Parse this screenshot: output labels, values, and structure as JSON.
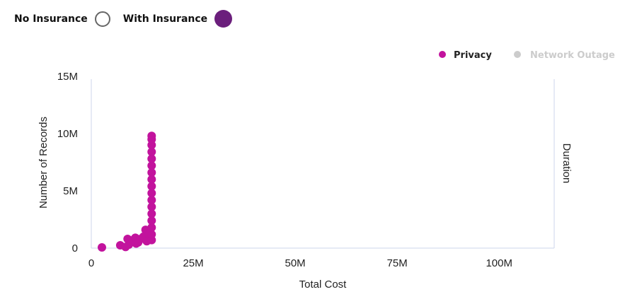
{
  "insurance_toggle": {
    "no_insurance_label": "No Insurance",
    "with_insurance_label": "With Insurance",
    "with_insurance_color": "#6b1f7c",
    "selected": "With Insurance"
  },
  "chart_data": {
    "type": "scatter",
    "xlabel": "Total Cost",
    "ylabel": "Number of Records",
    "y2label": "Duration",
    "xlim": [
      0,
      113.5
    ],
    "ylim": [
      0,
      15
    ],
    "x_unit": "M",
    "y_unit": "M",
    "x_ticks": [
      "0",
      "25M",
      "50M",
      "75M",
      "100M"
    ],
    "x_tick_values": [
      0,
      25,
      50,
      75,
      100
    ],
    "y_ticks": [
      "0",
      "5M",
      "10M",
      "15M"
    ],
    "y_tick_values": [
      0,
      5,
      10,
      15
    ],
    "grid": false,
    "legend_position": "top-right",
    "legend": [
      {
        "name": "Privacy",
        "color": "#c2139d",
        "visible": true
      },
      {
        "name": "Network Outage",
        "color": "#cccccc",
        "visible": false
      }
    ],
    "series": [
      {
        "name": "Privacy",
        "color": "#c2139d",
        "points": [
          [
            2.6,
            0.05
          ],
          [
            7.1,
            0.25
          ],
          [
            8.4,
            0.1
          ],
          [
            9.2,
            0.3
          ],
          [
            8.9,
            0.8
          ],
          [
            9.5,
            0.6
          ],
          [
            10.2,
            0.7
          ],
          [
            10.8,
            0.9
          ],
          [
            11.0,
            0.4
          ],
          [
            11.5,
            0.5
          ],
          [
            12.1,
            0.8
          ],
          [
            12.8,
            1.0
          ],
          [
            13.3,
            1.6
          ],
          [
            13.6,
            0.6
          ],
          [
            14.2,
            1.2
          ],
          [
            14.8,
            0.7
          ],
          [
            14.8,
            1.2
          ],
          [
            14.8,
            1.8
          ],
          [
            14.8,
            2.4
          ],
          [
            14.8,
            3.0
          ],
          [
            14.8,
            3.6
          ],
          [
            14.8,
            4.2
          ],
          [
            14.8,
            4.8
          ],
          [
            14.8,
            5.4
          ],
          [
            14.8,
            6.0
          ],
          [
            14.8,
            6.6
          ],
          [
            14.8,
            7.2
          ],
          [
            14.8,
            7.8
          ],
          [
            14.8,
            8.4
          ],
          [
            14.8,
            9.0
          ],
          [
            14.8,
            9.5
          ],
          [
            14.8,
            9.8
          ]
        ]
      }
    ]
  }
}
